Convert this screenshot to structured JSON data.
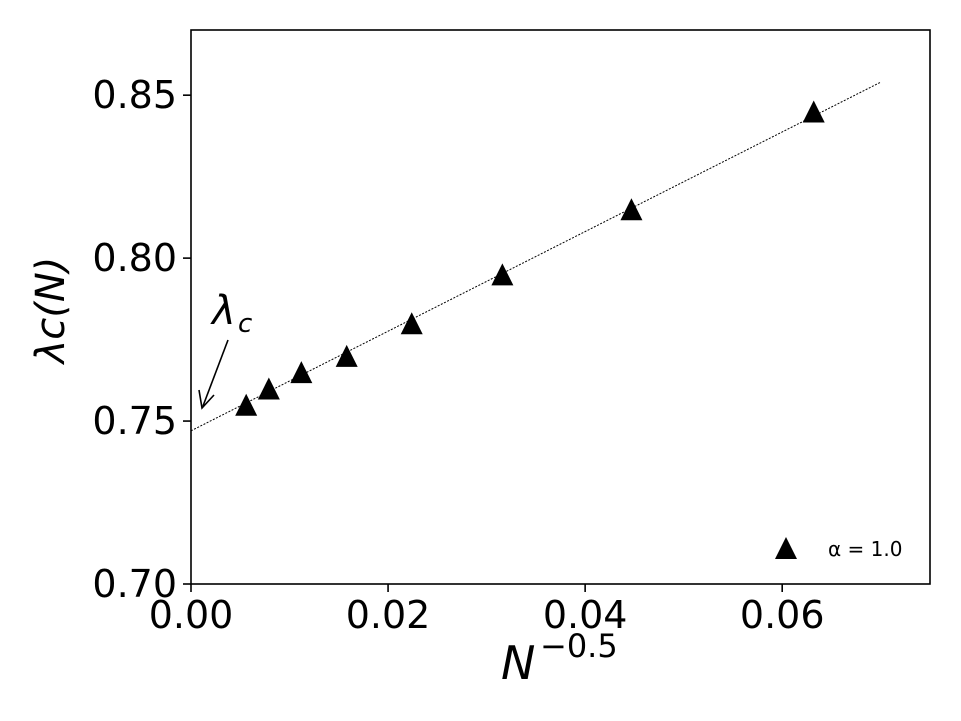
{
  "chart_data": {
    "type": "scatter",
    "x": [
      0.0056,
      0.0079,
      0.0112,
      0.0158,
      0.0224,
      0.0316,
      0.0447,
      0.0632
    ],
    "series": [
      {
        "name": "α = 1.0",
        "marker": "triangle",
        "color": "#000000",
        "values": [
          0.755,
          0.76,
          0.765,
          0.77,
          0.78,
          0.795,
          0.815,
          0.845
        ]
      }
    ],
    "fit_line": {
      "x": [
        0.0,
        0.07
      ],
      "y": [
        0.747,
        0.854
      ],
      "style": "dotted"
    },
    "xlim": [
      0.0,
      0.075
    ],
    "ylim": [
      0.7,
      0.87
    ],
    "xticks": [
      "0.00",
      "0.02",
      "0.04",
      "0.06"
    ],
    "yticks": [
      "0.70",
      "0.75",
      "0.80",
      "0.85"
    ],
    "xlabel": {
      "base": "N",
      "sup": "−0.5"
    },
    "ylabel": "λc(N)",
    "annotation": {
      "text": "λ",
      "sub": "c",
      "target_x": 0.0,
      "target_y": 0.7515
    },
    "legend": {
      "label": "α = 1.0",
      "placement": "bottom-right"
    },
    "grid": false
  }
}
